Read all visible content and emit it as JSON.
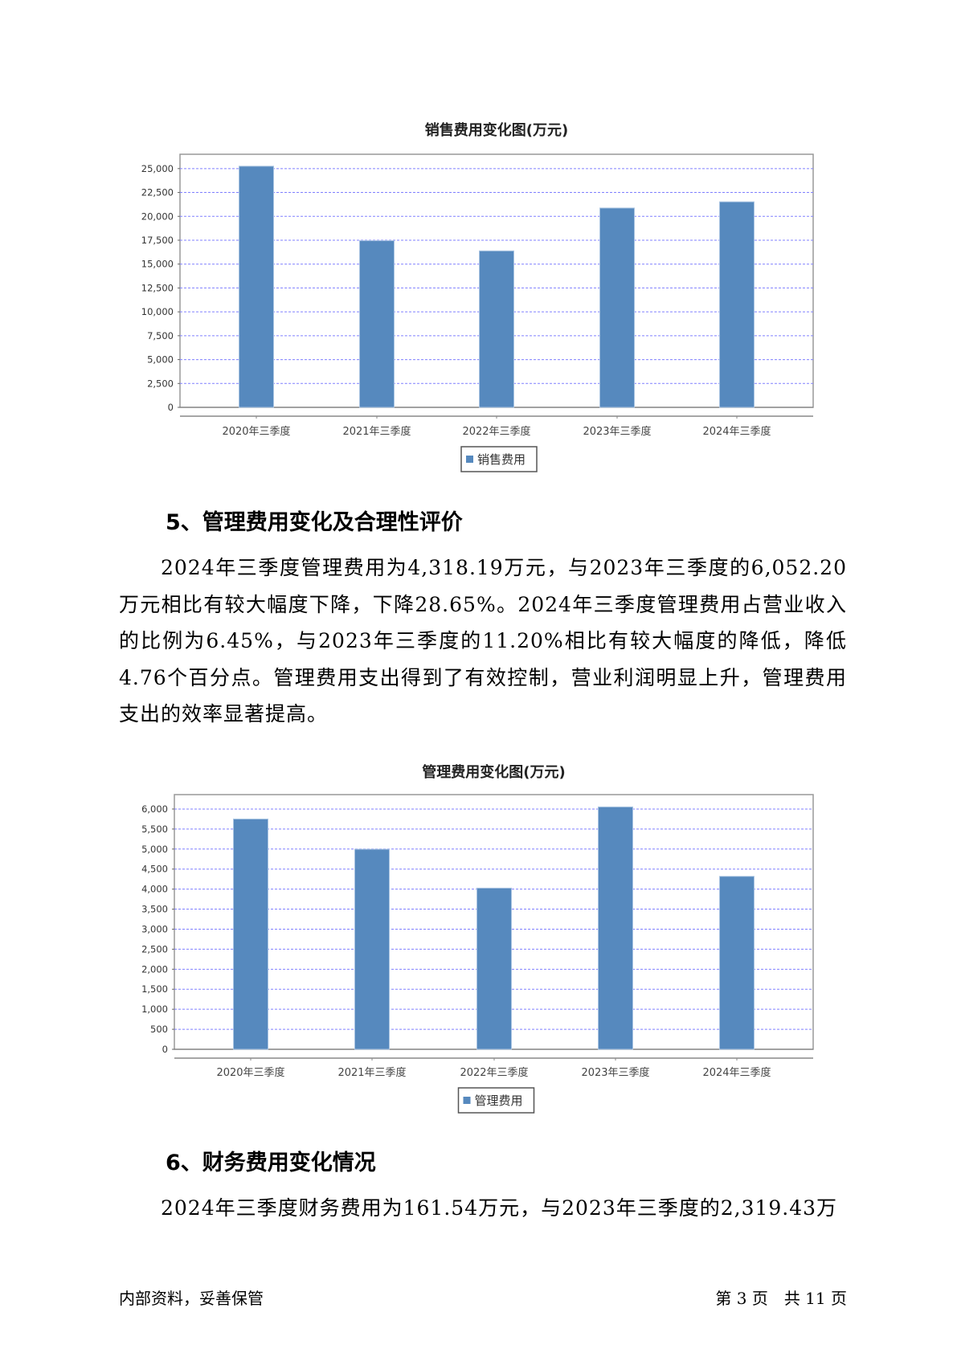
{
  "chart_data": [
    {
      "type": "bar",
      "title": "销售费用变化图(万元)",
      "categories": [
        "2020年三季度",
        "2021年三季度",
        "2022年三季度",
        "2023年三季度",
        "2024年三季度"
      ],
      "series": [
        {
          "name": "销售费用",
          "values": [
            25250,
            17450,
            16380,
            20870,
            21520
          ]
        }
      ],
      "yticks": [
        "0",
        "2,500",
        "5,000",
        "7,500",
        "10,000",
        "12,500",
        "15,000",
        "17,500",
        "20,000",
        "22,500",
        "25,000"
      ],
      "ytick_values": [
        0,
        2500,
        5000,
        7500,
        10000,
        12500,
        15000,
        17500,
        20000,
        22500,
        25000
      ],
      "ylim": [
        0,
        26500
      ],
      "grid": true,
      "legend": "bottom-center",
      "bar_color": "#5689be",
      "grid_color": "#8080ff"
    },
    {
      "type": "bar",
      "title": "管理费用变化图(万元)",
      "categories": [
        "2020年三季度",
        "2021年三季度",
        "2022年三季度",
        "2023年三季度",
        "2024年三季度"
      ],
      "series": [
        {
          "name": "管理费用",
          "values": [
            5750,
            4995,
            4025,
            6052.2,
            4318.19
          ]
        }
      ],
      "yticks": [
        "0",
        "500",
        "1,000",
        "1,500",
        "2,000",
        "2,500",
        "3,000",
        "3,500",
        "4,000",
        "4,500",
        "5,000",
        "5,500",
        "6,000"
      ],
      "ytick_values": [
        0,
        500,
        1000,
        1500,
        2000,
        2500,
        3000,
        3500,
        4000,
        4500,
        5000,
        5500,
        6000
      ],
      "ylim": [
        0,
        6360
      ],
      "grid": true,
      "legend": "bottom-center",
      "bar_color": "#5689be",
      "grid_color": "#8080ff"
    }
  ],
  "section5": {
    "heading": "5、管理费用变化及合理性评价",
    "paragraph": "2024年三季度管理费用为4,318.19万元，与2023年三季度的6,052.20万元相比有较大幅度下降，下降28.65%。2024年三季度管理费用占营业收入的比例为6.45%，与2023年三季度的11.20%相比有较大幅度的降低，降低4.76个百分点。管理费用支出得到了有效控制，营业利润明显上升，管理费用支出的效率显著提高。"
  },
  "section6": {
    "heading": "6、财务费用变化情况",
    "paragraph": "2024年三季度财务费用为161.54万元，与2023年三季度的2,319.43万"
  },
  "footer": {
    "left": "内部资料，妥善保管",
    "right": "第 3 页　共 11 页"
  }
}
